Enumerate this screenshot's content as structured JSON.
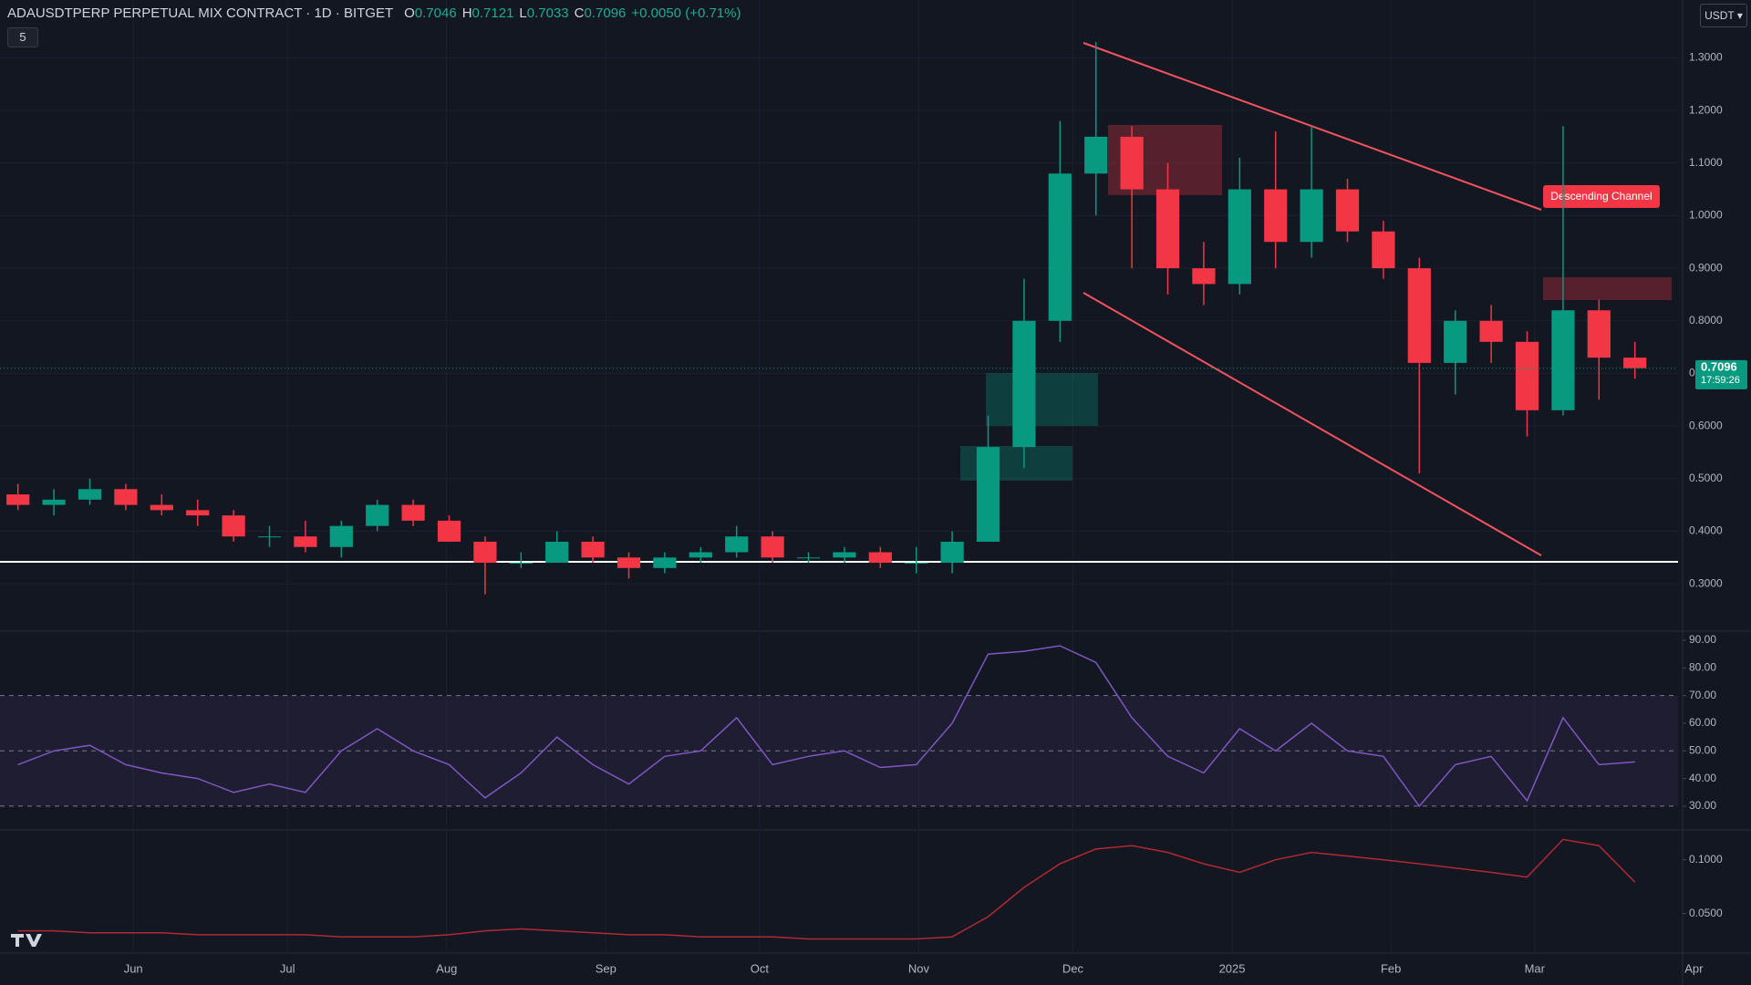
{
  "chart_data": [
    {
      "type": "candlestick",
      "title": "ADAUSDTPERP PERPETUAL MIX CONTRACT · 1D · BITGET",
      "ohlc_header": [
        {
          "label": "O",
          "value": 0.7046
        },
        {
          "label": "H",
          "value": 0.7121
        },
        {
          "label": "L",
          "value": 0.7033
        },
        {
          "label": "C",
          "value": 0.7096
        }
      ],
      "change": "+0.0050 (+0.71%)",
      "currency": "USDT",
      "indicator_count": 5,
      "annotation": "Descending Channel",
      "last_price": {
        "value": 0.7096,
        "label": "0.7096"
      },
      "countdown": "17:59:26",
      "up_color": "#089981",
      "down_color": "#f23645",
      "categories": [
        null,
        null,
        null,
        null,
        null,
        null,
        null,
        null,
        null,
        null,
        null,
        null,
        null,
        null,
        null,
        null,
        null,
        null,
        null,
        null,
        null,
        null,
        null,
        null,
        null,
        null,
        null,
        null,
        null,
        null,
        null,
        null,
        null,
        null,
        null,
        null,
        null,
        null,
        null,
        null,
        null,
        null,
        null,
        null,
        null,
        null
      ],
      "open": [
        0.47,
        0.45,
        0.46,
        0.48,
        0.45,
        0.44,
        0.43,
        0.39,
        0.39,
        0.37,
        0.41,
        0.45,
        0.42,
        0.38,
        0.34,
        0.34,
        0.38,
        0.35,
        0.33,
        0.35,
        0.36,
        0.39,
        0.35,
        0.35,
        0.36,
        0.34,
        0.34,
        0.38,
        0.56,
        0.8,
        1.08,
        1.15,
        1.05,
        0.9,
        0.87,
        1.05,
        0.95,
        1.05,
        0.97,
        0.9,
        0.72,
        0.8,
        0.76,
        0.63,
        0.82,
        0.73
      ],
      "high": [
        0.49,
        0.48,
        0.5,
        0.49,
        0.47,
        0.46,
        0.44,
        0.41,
        0.42,
        0.42,
        0.46,
        0.46,
        0.43,
        0.39,
        0.36,
        0.4,
        0.39,
        0.36,
        0.36,
        0.37,
        0.41,
        0.4,
        0.36,
        0.37,
        0.37,
        0.37,
        0.4,
        0.62,
        0.88,
        1.18,
        1.33,
        1.17,
        1.1,
        0.95,
        1.11,
        1.16,
        1.17,
        1.07,
        0.99,
        0.92,
        0.82,
        0.83,
        0.78,
        1.17,
        0.84,
        0.76
      ],
      "low": [
        0.44,
        0.43,
        0.45,
        0.44,
        0.43,
        0.41,
        0.38,
        0.37,
        0.36,
        0.35,
        0.4,
        0.41,
        0.38,
        0.28,
        0.33,
        0.34,
        0.34,
        0.31,
        0.32,
        0.34,
        0.35,
        0.34,
        0.34,
        0.34,
        0.33,
        0.32,
        0.32,
        0.38,
        0.52,
        0.76,
        1.0,
        0.9,
        0.85,
        0.83,
        0.85,
        0.9,
        0.92,
        0.95,
        0.88,
        0.51,
        0.66,
        0.72,
        0.58,
        0.62,
        0.65,
        0.69
      ],
      "close": [
        0.45,
        0.46,
        0.48,
        0.45,
        0.44,
        0.43,
        0.39,
        0.39,
        0.37,
        0.41,
        0.45,
        0.42,
        0.38,
        0.34,
        0.34,
        0.38,
        0.35,
        0.33,
        0.35,
        0.36,
        0.39,
        0.35,
        0.35,
        0.36,
        0.34,
        0.34,
        0.38,
        0.56,
        0.8,
        1.08,
        1.15,
        1.05,
        0.9,
        0.87,
        1.05,
        0.95,
        1.05,
        0.97,
        0.9,
        0.72,
        0.8,
        0.76,
        0.63,
        0.82,
        0.73,
        0.71
      ],
      "xlim": [
        0,
        46.7
      ],
      "xticks": [
        {
          "value": 3.71,
          "label": "Jun"
        },
        {
          "value": 8.0,
          "label": "Jul"
        },
        {
          "value": 12.43,
          "label": "Aug"
        },
        {
          "value": 16.86,
          "label": "Sep"
        },
        {
          "value": 21.14,
          "label": "Oct"
        },
        {
          "value": 25.57,
          "label": "Nov"
        },
        {
          "value": 29.86,
          "label": "Dec"
        },
        {
          "value": 34.29,
          "label": "2025"
        },
        {
          "value": 38.71,
          "label": "Feb"
        },
        {
          "value": 42.71,
          "label": "Mar"
        },
        {
          "value": 47.14,
          "label": "Apr"
        }
      ],
      "ylim": [
        0.21,
        1.41
      ],
      "yticks": [
        {
          "value": 0.3,
          "label": "0.3000"
        },
        {
          "value": 0.4,
          "label": "0.4000"
        },
        {
          "value": 0.5,
          "label": "0.5000"
        },
        {
          "value": 0.6,
          "label": "0.6000"
        },
        {
          "value": 0.7,
          "label": "0.7000"
        },
        {
          "value": 0.8,
          "label": "0.8000"
        },
        {
          "value": 0.9,
          "label": "0.9000"
        },
        {
          "value": 1.0,
          "label": "1.0000"
        },
        {
          "value": 1.1,
          "label": "1.1000"
        },
        {
          "value": 1.2,
          "label": "1.2000"
        },
        {
          "value": 1.3,
          "label": "1.3000"
        }
      ],
      "grid": true
    },
    {
      "type": "line",
      "color": "#7e57c2",
      "values": [
        45,
        50,
        52,
        45,
        42,
        40,
        35,
        38,
        35,
        50,
        58,
        50,
        45,
        33,
        42,
        55,
        45,
        38,
        48,
        50,
        62,
        45,
        48,
        50,
        44,
        45,
        60,
        85,
        86,
        88,
        82,
        62,
        48,
        42,
        58,
        50,
        60,
        50,
        48,
        30,
        45,
        48,
        32,
        62,
        45,
        46
      ],
      "ylim": [
        21.4,
        93.3
      ],
      "yticks": [
        {
          "value": 90,
          "label": "90.00"
        },
        {
          "value": 80,
          "label": "80.00"
        },
        {
          "value": 70,
          "label": "70.00"
        },
        {
          "value": 60,
          "label": "60.00"
        },
        {
          "value": 50,
          "label": "50.00"
        },
        {
          "value": 40,
          "label": "40.00"
        },
        {
          "value": 30,
          "label": "30.00"
        }
      ],
      "bands": [
        70,
        50,
        30
      ]
    },
    {
      "type": "line",
      "color": "#b22833",
      "log_scale": true,
      "values": [
        0.04,
        0.04,
        0.039,
        0.039,
        0.039,
        0.038,
        0.038,
        0.038,
        0.038,
        0.037,
        0.037,
        0.037,
        0.038,
        0.04,
        0.041,
        0.04,
        0.039,
        0.038,
        0.038,
        0.037,
        0.037,
        0.037,
        0.036,
        0.036,
        0.036,
        0.036,
        0.037,
        0.048,
        0.07,
        0.095,
        0.115,
        0.12,
        0.11,
        0.095,
        0.085,
        0.1,
        0.11,
        0.105,
        0.1,
        0.095,
        0.09,
        0.085,
        0.08,
        0.13,
        0.12,
        0.075
      ],
      "ylim": [
        0.03,
        0.147
      ],
      "yticks": [
        {
          "value": 0.1,
          "label": "0.1000"
        },
        {
          "value": 0.05,
          "label": "0.0500"
        }
      ]
    }
  ]
}
